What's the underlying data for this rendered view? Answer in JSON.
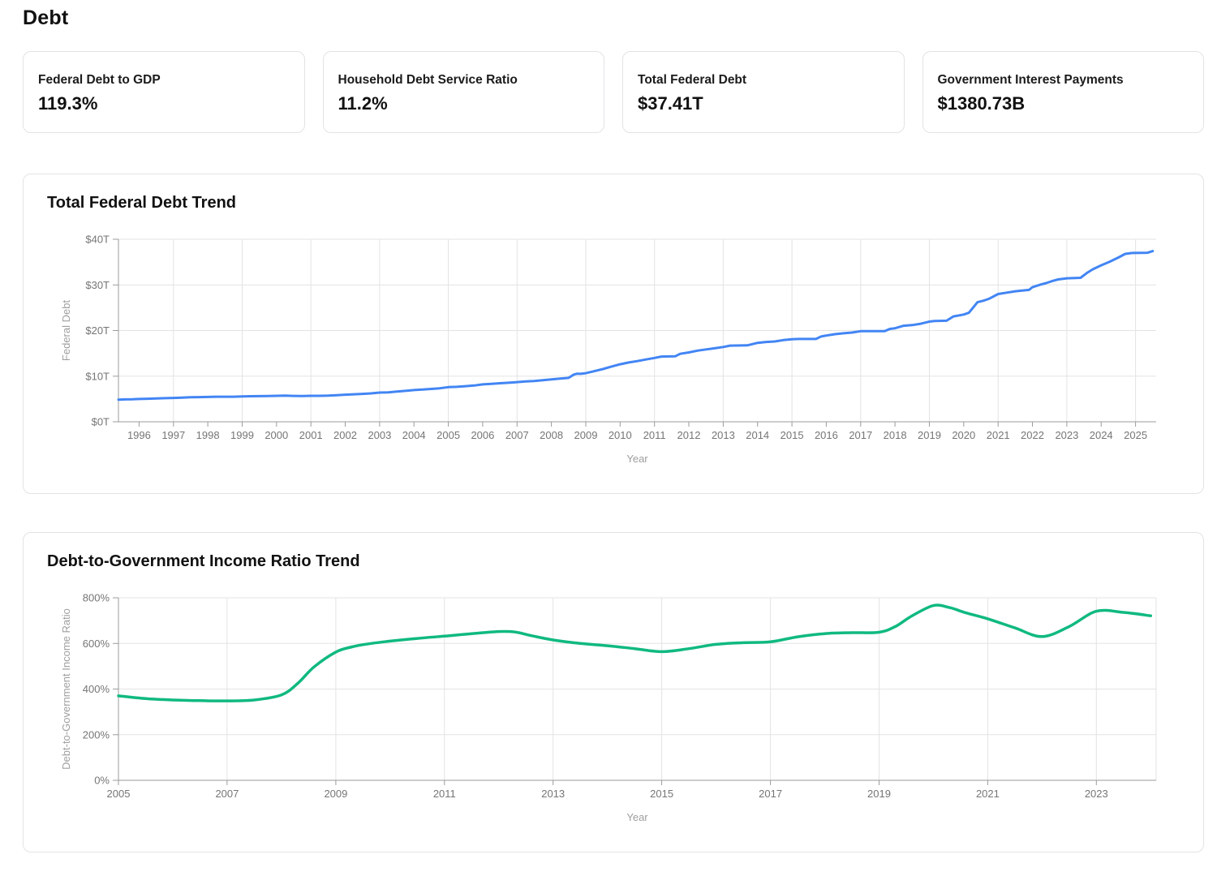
{
  "page": {
    "title": "Debt"
  },
  "stats": [
    {
      "label": "Federal Debt to GDP",
      "value": "119.3%"
    },
    {
      "label": "Household Debt Service Ratio",
      "value": "11.2%"
    },
    {
      "label": "Total Federal Debt",
      "value": "$37.41T"
    },
    {
      "label": "Government Interest Payments",
      "value": "$1380.73B"
    }
  ],
  "theme": {
    "line_blue": "#4285F4",
    "line_green": "#10B981",
    "grid": "#E3E3E3",
    "axis": "#9B9B9B",
    "tick_text": "#757575",
    "axis_title_text": "#9E9E9E"
  },
  "chart_data": [
    {
      "type": "line",
      "title": "Total Federal Debt Trend",
      "xlabel": "Year",
      "ylabel": "Federal Debt",
      "color": "#4285F4",
      "smooth": false,
      "legend": "none",
      "grid": true,
      "x_range": [
        1995.4,
        2025.6
      ],
      "y_range": [
        0,
        40
      ],
      "y_ticks": [
        0,
        10,
        20,
        30,
        40
      ],
      "y_tick_labels": [
        "$0T",
        "$10T",
        "$20T",
        "$30T",
        "$40T"
      ],
      "x_ticks": [
        1996,
        1997,
        1998,
        1999,
        2000,
        2001,
        2002,
        2003,
        2004,
        2005,
        2006,
        2007,
        2008,
        2009,
        2010,
        2011,
        2012,
        2013,
        2014,
        2015,
        2016,
        2017,
        2018,
        2019,
        2020,
        2021,
        2022,
        2023,
        2024,
        2025
      ],
      "x_tick_labels": [
        "1996",
        "1997",
        "1998",
        "1999",
        "2000",
        "2001",
        "2002",
        "2003",
        "2004",
        "2005",
        "2006",
        "2007",
        "2008",
        "2009",
        "2010",
        "2011",
        "2012",
        "2013",
        "2014",
        "2015",
        "2016",
        "2017",
        "2018",
        "2019",
        "2020",
        "2021",
        "2022",
        "2023",
        "2024",
        "2025"
      ],
      "grid_x": [
        1997,
        1999,
        2001,
        2003,
        2005,
        2007,
        2009,
        2011,
        2013,
        2015,
        2017,
        2019,
        2021,
        2023,
        2025
      ],
      "points": [
        [
          1995.4,
          4.85
        ],
        [
          1995.6,
          4.9
        ],
        [
          1995.8,
          4.93
        ],
        [
          1996,
          5.0
        ],
        [
          1996.25,
          5.05
        ],
        [
          1996.5,
          5.1
        ],
        [
          1996.75,
          5.17
        ],
        [
          1997,
          5.22
        ],
        [
          1997.25,
          5.3
        ],
        [
          1997.5,
          5.37
        ],
        [
          1997.75,
          5.41
        ],
        [
          1998,
          5.44
        ],
        [
          1998.25,
          5.5
        ],
        [
          1998.5,
          5.5
        ],
        [
          1998.75,
          5.5
        ],
        [
          1999,
          5.54
        ],
        [
          1999.25,
          5.6
        ],
        [
          1999.5,
          5.62
        ],
        [
          1999.75,
          5.65
        ],
        [
          2000,
          5.69
        ],
        [
          2000.25,
          5.72
        ],
        [
          2000.5,
          5.67
        ],
        [
          2000.75,
          5.64
        ],
        [
          2001,
          5.69
        ],
        [
          2001.25,
          5.68
        ],
        [
          2001.5,
          5.72
        ],
        [
          2001.75,
          5.81
        ],
        [
          2002,
          5.94
        ],
        [
          2002.25,
          6.02
        ],
        [
          2002.5,
          6.12
        ],
        [
          2002.75,
          6.23
        ],
        [
          2003,
          6.4
        ],
        [
          2003.25,
          6.46
        ],
        [
          2003.5,
          6.63
        ],
        [
          2003.75,
          6.78
        ],
        [
          2004,
          6.95
        ],
        [
          2004.25,
          7.07
        ],
        [
          2004.5,
          7.2
        ],
        [
          2004.75,
          7.35
        ],
        [
          2005,
          7.6
        ],
        [
          2005.25,
          7.66
        ],
        [
          2005.5,
          7.8
        ],
        [
          2005.75,
          7.95
        ],
        [
          2006,
          8.2
        ],
        [
          2006.25,
          8.3
        ],
        [
          2006.5,
          8.45
        ],
        [
          2006.75,
          8.55
        ],
        [
          2007,
          8.7
        ],
        [
          2007.25,
          8.85
        ],
        [
          2007.5,
          8.95
        ],
        [
          2007.75,
          9.1
        ],
        [
          2008,
          9.3
        ],
        [
          2008.25,
          9.45
        ],
        [
          2008.5,
          9.62
        ],
        [
          2008.65,
          10.35
        ],
        [
          2008.75,
          10.55
        ],
        [
          2008.85,
          10.5
        ],
        [
          2009,
          10.65
        ],
        [
          2009.25,
          11.1
        ],
        [
          2009.5,
          11.55
        ],
        [
          2009.75,
          12.1
        ],
        [
          2010,
          12.6
        ],
        [
          2010.25,
          13.0
        ],
        [
          2010.5,
          13.3
        ],
        [
          2010.75,
          13.65
        ],
        [
          2011,
          14.0
        ],
        [
          2011.2,
          14.3
        ],
        [
          2011.6,
          14.35
        ],
        [
          2011.75,
          14.9
        ],
        [
          2012,
          15.2
        ],
        [
          2012.25,
          15.6
        ],
        [
          2012.5,
          15.85
        ],
        [
          2012.75,
          16.1
        ],
        [
          2013,
          16.4
        ],
        [
          2013.2,
          16.7
        ],
        [
          2013.7,
          16.74
        ],
        [
          2014,
          17.3
        ],
        [
          2014.25,
          17.5
        ],
        [
          2014.5,
          17.6
        ],
        [
          2014.75,
          17.9
        ],
        [
          2015,
          18.1
        ],
        [
          2015.2,
          18.15
        ],
        [
          2015.7,
          18.15
        ],
        [
          2015.85,
          18.7
        ],
        [
          2016,
          18.9
        ],
        [
          2016.25,
          19.2
        ],
        [
          2016.5,
          19.4
        ],
        [
          2016.75,
          19.55
        ],
        [
          2017,
          19.85
        ],
        [
          2017.2,
          19.85
        ],
        [
          2017.7,
          19.85
        ],
        [
          2017.85,
          20.35
        ],
        [
          2018,
          20.5
        ],
        [
          2018.25,
          21.05
        ],
        [
          2018.5,
          21.2
        ],
        [
          2018.75,
          21.5
        ],
        [
          2019,
          21.95
        ],
        [
          2019.15,
          22.1
        ],
        [
          2019.5,
          22.15
        ],
        [
          2019.7,
          23.1
        ],
        [
          2020,
          23.5
        ],
        [
          2020.15,
          23.9
        ],
        [
          2020.4,
          26.2
        ],
        [
          2020.6,
          26.6
        ],
        [
          2020.75,
          27.0
        ],
        [
          2021,
          28.0
        ],
        [
          2021.25,
          28.3
        ],
        [
          2021.5,
          28.6
        ],
        [
          2021.9,
          28.9
        ],
        [
          2022,
          29.5
        ],
        [
          2022.25,
          30.1
        ],
        [
          2022.4,
          30.4
        ],
        [
          2022.6,
          30.9
        ],
        [
          2022.75,
          31.2
        ],
        [
          2023,
          31.45
        ],
        [
          2023.4,
          31.55
        ],
        [
          2023.6,
          32.7
        ],
        [
          2023.75,
          33.4
        ],
        [
          2024,
          34.3
        ],
        [
          2024.25,
          35.1
        ],
        [
          2024.5,
          36.0
        ],
        [
          2024.7,
          36.8
        ],
        [
          2024.9,
          37.0
        ],
        [
          2025.35,
          37.05
        ],
        [
          2025.5,
          37.41
        ]
      ]
    },
    {
      "type": "line",
      "title": "Debt-to-Government Income Ratio Trend",
      "xlabel": "Year",
      "ylabel": "Debt-to-Government Income Ratio",
      "color": "#10B981",
      "smooth": true,
      "legend": "none",
      "grid": true,
      "x_range": [
        2005,
        2024.1
      ],
      "y_range": [
        0,
        800
      ],
      "y_ticks": [
        0,
        200,
        400,
        600,
        800
      ],
      "y_tick_labels": [
        "0%",
        "200%",
        "400%",
        "600%",
        "800%"
      ],
      "x_ticks": [
        2005,
        2007,
        2009,
        2011,
        2013,
        2015,
        2017,
        2019,
        2021,
        2023
      ],
      "x_tick_labels": [
        "2005",
        "2007",
        "2009",
        "2011",
        "2013",
        "2015",
        "2017",
        "2019",
        "2021",
        "2023"
      ],
      "grid_x": [
        2007,
        2009,
        2011,
        2013,
        2015,
        2017,
        2019,
        2021,
        2023,
        2024.1
      ],
      "points": [
        [
          2005,
          370
        ],
        [
          2005.5,
          358
        ],
        [
          2006,
          352
        ],
        [
          2006.5,
          349
        ],
        [
          2007,
          348
        ],
        [
          2007.5,
          352
        ],
        [
          2008,
          374
        ],
        [
          2008.3,
          425
        ],
        [
          2008.6,
          497
        ],
        [
          2009,
          562
        ],
        [
          2009.3,
          585
        ],
        [
          2009.6,
          598
        ],
        [
          2010,
          610
        ],
        [
          2010.5,
          622
        ],
        [
          2011,
          632
        ],
        [
          2011.5,
          643
        ],
        [
          2012,
          652
        ],
        [
          2012.3,
          650
        ],
        [
          2012.6,
          634
        ],
        [
          2013,
          615
        ],
        [
          2013.5,
          600
        ],
        [
          2014,
          590
        ],
        [
          2014.5,
          577
        ],
        [
          2015,
          564
        ],
        [
          2015.5,
          577
        ],
        [
          2016,
          596
        ],
        [
          2016.5,
          603
        ],
        [
          2017,
          607
        ],
        [
          2017.5,
          629
        ],
        [
          2018,
          643
        ],
        [
          2018.5,
          647
        ],
        [
          2019,
          649
        ],
        [
          2019.3,
          674
        ],
        [
          2019.6,
          720
        ],
        [
          2020,
          766
        ],
        [
          2020.3,
          757
        ],
        [
          2020.6,
          734
        ],
        [
          2021,
          708
        ],
        [
          2021.5,
          668
        ],
        [
          2022,
          630
        ],
        [
          2022.5,
          674
        ],
        [
          2023,
          741
        ],
        [
          2023.5,
          736
        ],
        [
          2024,
          721
        ]
      ]
    }
  ]
}
